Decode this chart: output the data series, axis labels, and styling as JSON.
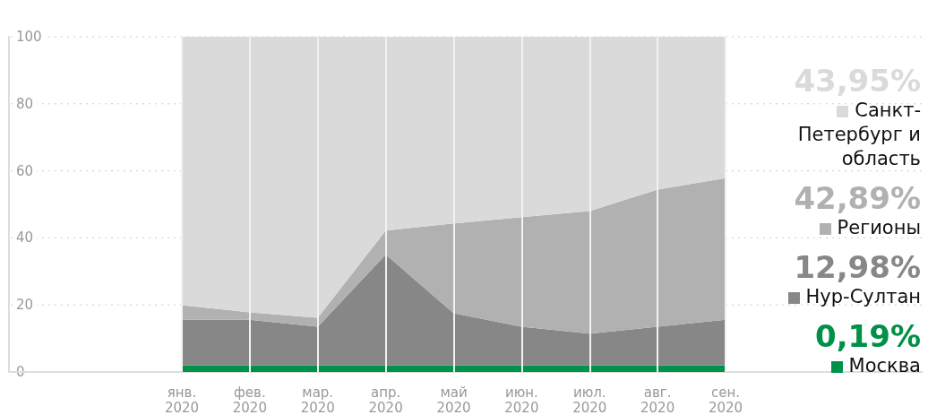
{
  "chart_data": {
    "type": "area",
    "stacked": true,
    "categories": [
      "янв. 2020",
      "фев. 2020",
      "мар. 2020",
      "апр. 2020",
      "май 2020",
      "июн. 2020",
      "июл. 2020",
      "авг. 2020",
      "сен. 2020"
    ],
    "series": [
      {
        "name": "Москва",
        "color": "#009148",
        "values": [
          2,
          2,
          2,
          2,
          2,
          2,
          2,
          2,
          2
        ]
      },
      {
        "name": "Нур-Султан",
        "color": "#878787",
        "values": [
          13.6,
          13.6,
          11.5,
          33,
          15.5,
          11.5,
          9.4,
          11.5,
          13.6
        ]
      },
      {
        "name": "Регионы",
        "color": "#b1b1b1",
        "values": [
          4.3,
          2.2,
          2.7,
          7.2,
          26.8,
          32.7,
          36.6,
          40.9,
          42.2
        ]
      },
      {
        "name": "Санкт-Петербург и область",
        "color": "#dadada",
        "values": [
          80.1,
          82.2,
          83.8,
          57.8,
          55.7,
          53.8,
          52,
          45.6,
          42.2
        ]
      }
    ],
    "annotations": [
      "43,95%",
      "42,89%",
      "12,98%",
      "0,19%"
    ],
    "ylim": [
      0,
      100
    ],
    "yticks": [
      0,
      20,
      40,
      60,
      80,
      100
    ],
    "grid": true,
    "legend": "right"
  }
}
